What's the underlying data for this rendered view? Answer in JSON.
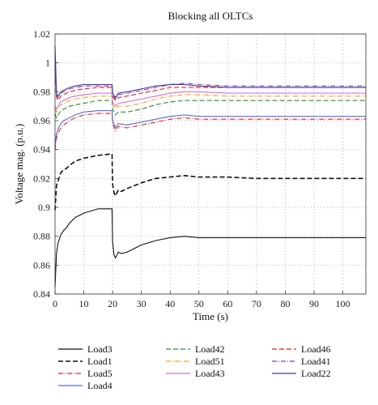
{
  "chart_data": {
    "type": "line",
    "title": "Blocking all OLTCs",
    "xlabel": "Time (s)",
    "ylabel": "Voltage mag. (p.u.)",
    "xlim": [
      0,
      108
    ],
    "ylim": [
      0.84,
      1.02
    ],
    "xticks": [
      0,
      10,
      20,
      30,
      40,
      50,
      60,
      70,
      80,
      90,
      100
    ],
    "yticks": [
      0.84,
      0.86,
      0.88,
      0.9,
      0.92,
      0.94,
      0.96,
      0.98,
      1,
      1.02
    ],
    "xtick_labels": [
      "0",
      "10",
      "20",
      "30",
      "40",
      "50",
      "60",
      "70",
      "80",
      "90",
      "100"
    ],
    "ytick_labels": [
      "0.84",
      "0.86",
      "0.88",
      "0.9",
      "0.92",
      "0.94",
      "0.96",
      "0.98",
      "1",
      "1.02"
    ],
    "grid": true,
    "legend_placement": "below-plot",
    "series": [
      {
        "name": "Load3",
        "color": "#111111",
        "dash": "solid",
        "x": [
          0,
          0.5,
          1,
          2,
          3,
          4,
          5,
          7,
          10,
          15,
          19.8,
          20,
          20.5,
          21,
          22,
          23,
          25,
          27,
          30,
          35,
          40,
          45,
          50,
          55,
          60,
          70,
          80,
          90,
          100,
          108
        ],
        "y": [
          0.845,
          0.868,
          0.875,
          0.881,
          0.884,
          0.886,
          0.889,
          0.893,
          0.896,
          0.899,
          0.899,
          0.876,
          0.867,
          0.865,
          0.869,
          0.868,
          0.869,
          0.871,
          0.874,
          0.877,
          0.879,
          0.88,
          0.879,
          0.879,
          0.879,
          0.879,
          0.879,
          0.879,
          0.879,
          0.879
        ]
      },
      {
        "name": "Load1",
        "color": "#111111",
        "dash": "6,3",
        "x": [
          0,
          0.5,
          1,
          2,
          3,
          4,
          5,
          7,
          10,
          15,
          19.8,
          20,
          20.5,
          21,
          22,
          23,
          25,
          30,
          35,
          40,
          45,
          50,
          60,
          70,
          80,
          90,
          100,
          108
        ],
        "y": [
          0.898,
          0.915,
          0.918,
          0.924,
          0.926,
          0.927,
          0.929,
          0.932,
          0.934,
          0.936,
          0.937,
          0.916,
          0.91,
          0.908,
          0.912,
          0.911,
          0.913,
          0.917,
          0.92,
          0.921,
          0.922,
          0.921,
          0.921,
          0.92,
          0.92,
          0.92,
          0.92,
          0.92
        ]
      },
      {
        "name": "Load5",
        "color": "#e02020",
        "dash": "6,2,1,2",
        "x": [
          0,
          0.5,
          1,
          2,
          3,
          5,
          7,
          10,
          15,
          19.8,
          20,
          21,
          22,
          25,
          30,
          35,
          40,
          45,
          50,
          60,
          70,
          80,
          90,
          100,
          108
        ],
        "y": [
          0.94,
          0.948,
          0.951,
          0.955,
          0.957,
          0.96,
          0.962,
          0.964,
          0.965,
          0.965,
          0.958,
          0.953,
          0.956,
          0.955,
          0.957,
          0.959,
          0.961,
          0.962,
          0.961,
          0.961,
          0.961,
          0.961,
          0.961,
          0.961,
          0.961
        ]
      },
      {
        "name": "Load4",
        "color": "#5a6ad0",
        "dash": "solid",
        "x": [
          0,
          0.5,
          1,
          2,
          3,
          5,
          7,
          10,
          15,
          19.8,
          20,
          21,
          22,
          25,
          30,
          35,
          40,
          45,
          50,
          60,
          70,
          80,
          90,
          100,
          108
        ],
        "y": [
          0.943,
          0.951,
          0.954,
          0.958,
          0.96,
          0.962,
          0.964,
          0.966,
          0.967,
          0.967,
          0.96,
          0.955,
          0.958,
          0.957,
          0.959,
          0.961,
          0.963,
          0.964,
          0.963,
          0.963,
          0.963,
          0.963,
          0.963,
          0.963,
          0.963
        ]
      },
      {
        "name": "Load42",
        "color": "#2a8a2a",
        "dash": "6,3",
        "x": [
          0,
          0.5,
          1,
          2,
          3,
          5,
          7,
          10,
          15,
          19.8,
          20,
          21,
          22,
          25,
          30,
          35,
          40,
          45,
          50,
          60,
          70,
          80,
          90,
          100,
          108
        ],
        "y": [
          0.965,
          0.962,
          0.964,
          0.967,
          0.968,
          0.97,
          0.971,
          0.972,
          0.974,
          0.974,
          0.968,
          0.964,
          0.966,
          0.966,
          0.968,
          0.971,
          0.973,
          0.974,
          0.974,
          0.974,
          0.974,
          0.974,
          0.974,
          0.974,
          0.974
        ]
      },
      {
        "name": "Load51",
        "color": "#f0a020",
        "dash": "6,2,1,2",
        "x": [
          0,
          0.5,
          1,
          2,
          3,
          5,
          7,
          10,
          15,
          19.8,
          20,
          21,
          22,
          25,
          30,
          35,
          40,
          45,
          50,
          60,
          70,
          80,
          90,
          100,
          108
        ],
        "y": [
          0.968,
          0.966,
          0.968,
          0.971,
          0.972,
          0.974,
          0.975,
          0.976,
          0.977,
          0.977,
          0.971,
          0.968,
          0.97,
          0.97,
          0.972,
          0.975,
          0.977,
          0.978,
          0.978,
          0.977,
          0.977,
          0.977,
          0.977,
          0.977,
          0.977
        ]
      },
      {
        "name": "Load43",
        "color": "#d070d0",
        "dash": "solid",
        "x": [
          0,
          0.5,
          1,
          2,
          3,
          5,
          7,
          10,
          15,
          19.8,
          20,
          21,
          22,
          25,
          30,
          35,
          40,
          45,
          50,
          60,
          70,
          80,
          90,
          100,
          108
        ],
        "y": [
          0.97,
          0.968,
          0.97,
          0.973,
          0.974,
          0.976,
          0.977,
          0.978,
          0.979,
          0.979,
          0.973,
          0.97,
          0.972,
          0.973,
          0.975,
          0.977,
          0.979,
          0.98,
          0.98,
          0.979,
          0.979,
          0.979,
          0.979,
          0.979,
          0.979
        ]
      },
      {
        "name": "Load46",
        "color": "#e02020",
        "dash": "6,3",
        "x": [
          0,
          0.5,
          1,
          2,
          3,
          5,
          7,
          10,
          15,
          19.8,
          20,
          21,
          22,
          25,
          30,
          35,
          40,
          45,
          50,
          60,
          70,
          80,
          90,
          100,
          108
        ],
        "y": [
          0.998,
          0.976,
          0.974,
          0.977,
          0.978,
          0.98,
          0.981,
          0.982,
          0.983,
          0.983,
          0.977,
          0.974,
          0.976,
          0.977,
          0.979,
          0.981,
          0.983,
          0.983,
          0.983,
          0.983,
          0.983,
          0.983,
          0.983,
          0.983,
          0.983
        ]
      },
      {
        "name": "Load41",
        "color": "#8a3aaa",
        "dash": "6,2,1,2",
        "x": [
          0,
          0.5,
          1,
          2,
          3,
          5,
          7,
          10,
          15,
          19.8,
          20,
          21,
          22,
          25,
          30,
          35,
          40,
          45,
          50,
          60,
          70,
          80,
          90,
          100,
          108
        ],
        "y": [
          1.003,
          0.978,
          0.976,
          0.979,
          0.98,
          0.982,
          0.983,
          0.984,
          0.984,
          0.984,
          0.978,
          0.975,
          0.978,
          0.979,
          0.981,
          0.983,
          0.985,
          0.986,
          0.985,
          0.984,
          0.984,
          0.984,
          0.984,
          0.984,
          0.984
        ]
      },
      {
        "name": "Load22",
        "color": "#3a3a9a",
        "dash": "solid",
        "x": [
          0,
          0.5,
          1,
          2,
          3,
          5,
          7,
          10,
          15,
          19.8,
          20,
          21,
          22,
          25,
          30,
          35,
          40,
          45,
          50,
          60,
          70,
          80,
          90,
          100,
          108
        ],
        "y": [
          1.012,
          0.979,
          0.977,
          0.98,
          0.981,
          0.983,
          0.984,
          0.985,
          0.985,
          0.985,
          0.979,
          0.976,
          0.979,
          0.98,
          0.982,
          0.984,
          0.985,
          0.985,
          0.984,
          0.983,
          0.983,
          0.983,
          0.983,
          0.983,
          0.983
        ]
      }
    ]
  }
}
